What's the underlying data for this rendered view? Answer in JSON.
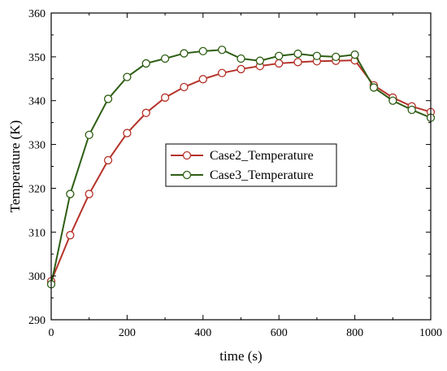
{
  "chart_data": {
    "type": "line",
    "xlabel": "time (s)",
    "ylabel": "Temperature (K)",
    "xlim": [
      0,
      1000
    ],
    "ylim": [
      290,
      360
    ],
    "x_ticks": [
      0,
      200,
      400,
      600,
      800,
      1000
    ],
    "y_ticks": [
      290,
      300,
      310,
      320,
      330,
      340,
      350,
      360
    ],
    "x_tick_labels": [
      "0",
      "200",
      "400",
      "600",
      "800",
      "1000"
    ],
    "y_tick_labels": [
      "290",
      "300",
      "310",
      "320",
      "330",
      "340",
      "350",
      "360"
    ],
    "grid": false,
    "legend_position": "center",
    "x": [
      0,
      50,
      100,
      150,
      200,
      250,
      300,
      350,
      400,
      450,
      500,
      550,
      600,
      650,
      700,
      750,
      800,
      850,
      900,
      950,
      1000
    ],
    "series": [
      {
        "name": "Case2_Temperature",
        "color": "#b5332a",
        "values": [
          298.8,
          309.3,
          318.7,
          326.4,
          332.6,
          337.2,
          340.7,
          343.1,
          344.9,
          346.3,
          347.2,
          347.9,
          348.5,
          348.8,
          349.0,
          349.1,
          349.2,
          343.5,
          340.7,
          338.7,
          337.4
        ]
      },
      {
        "name": "Case3_Temperature",
        "color": "#2e5e14",
        "values": [
          298.1,
          318.7,
          332.2,
          340.4,
          345.4,
          348.5,
          349.6,
          350.8,
          351.3,
          351.6,
          349.6,
          349.1,
          350.2,
          350.7,
          350.2,
          350.0,
          350.5,
          343.0,
          340.0,
          337.9,
          336.1
        ]
      }
    ]
  }
}
